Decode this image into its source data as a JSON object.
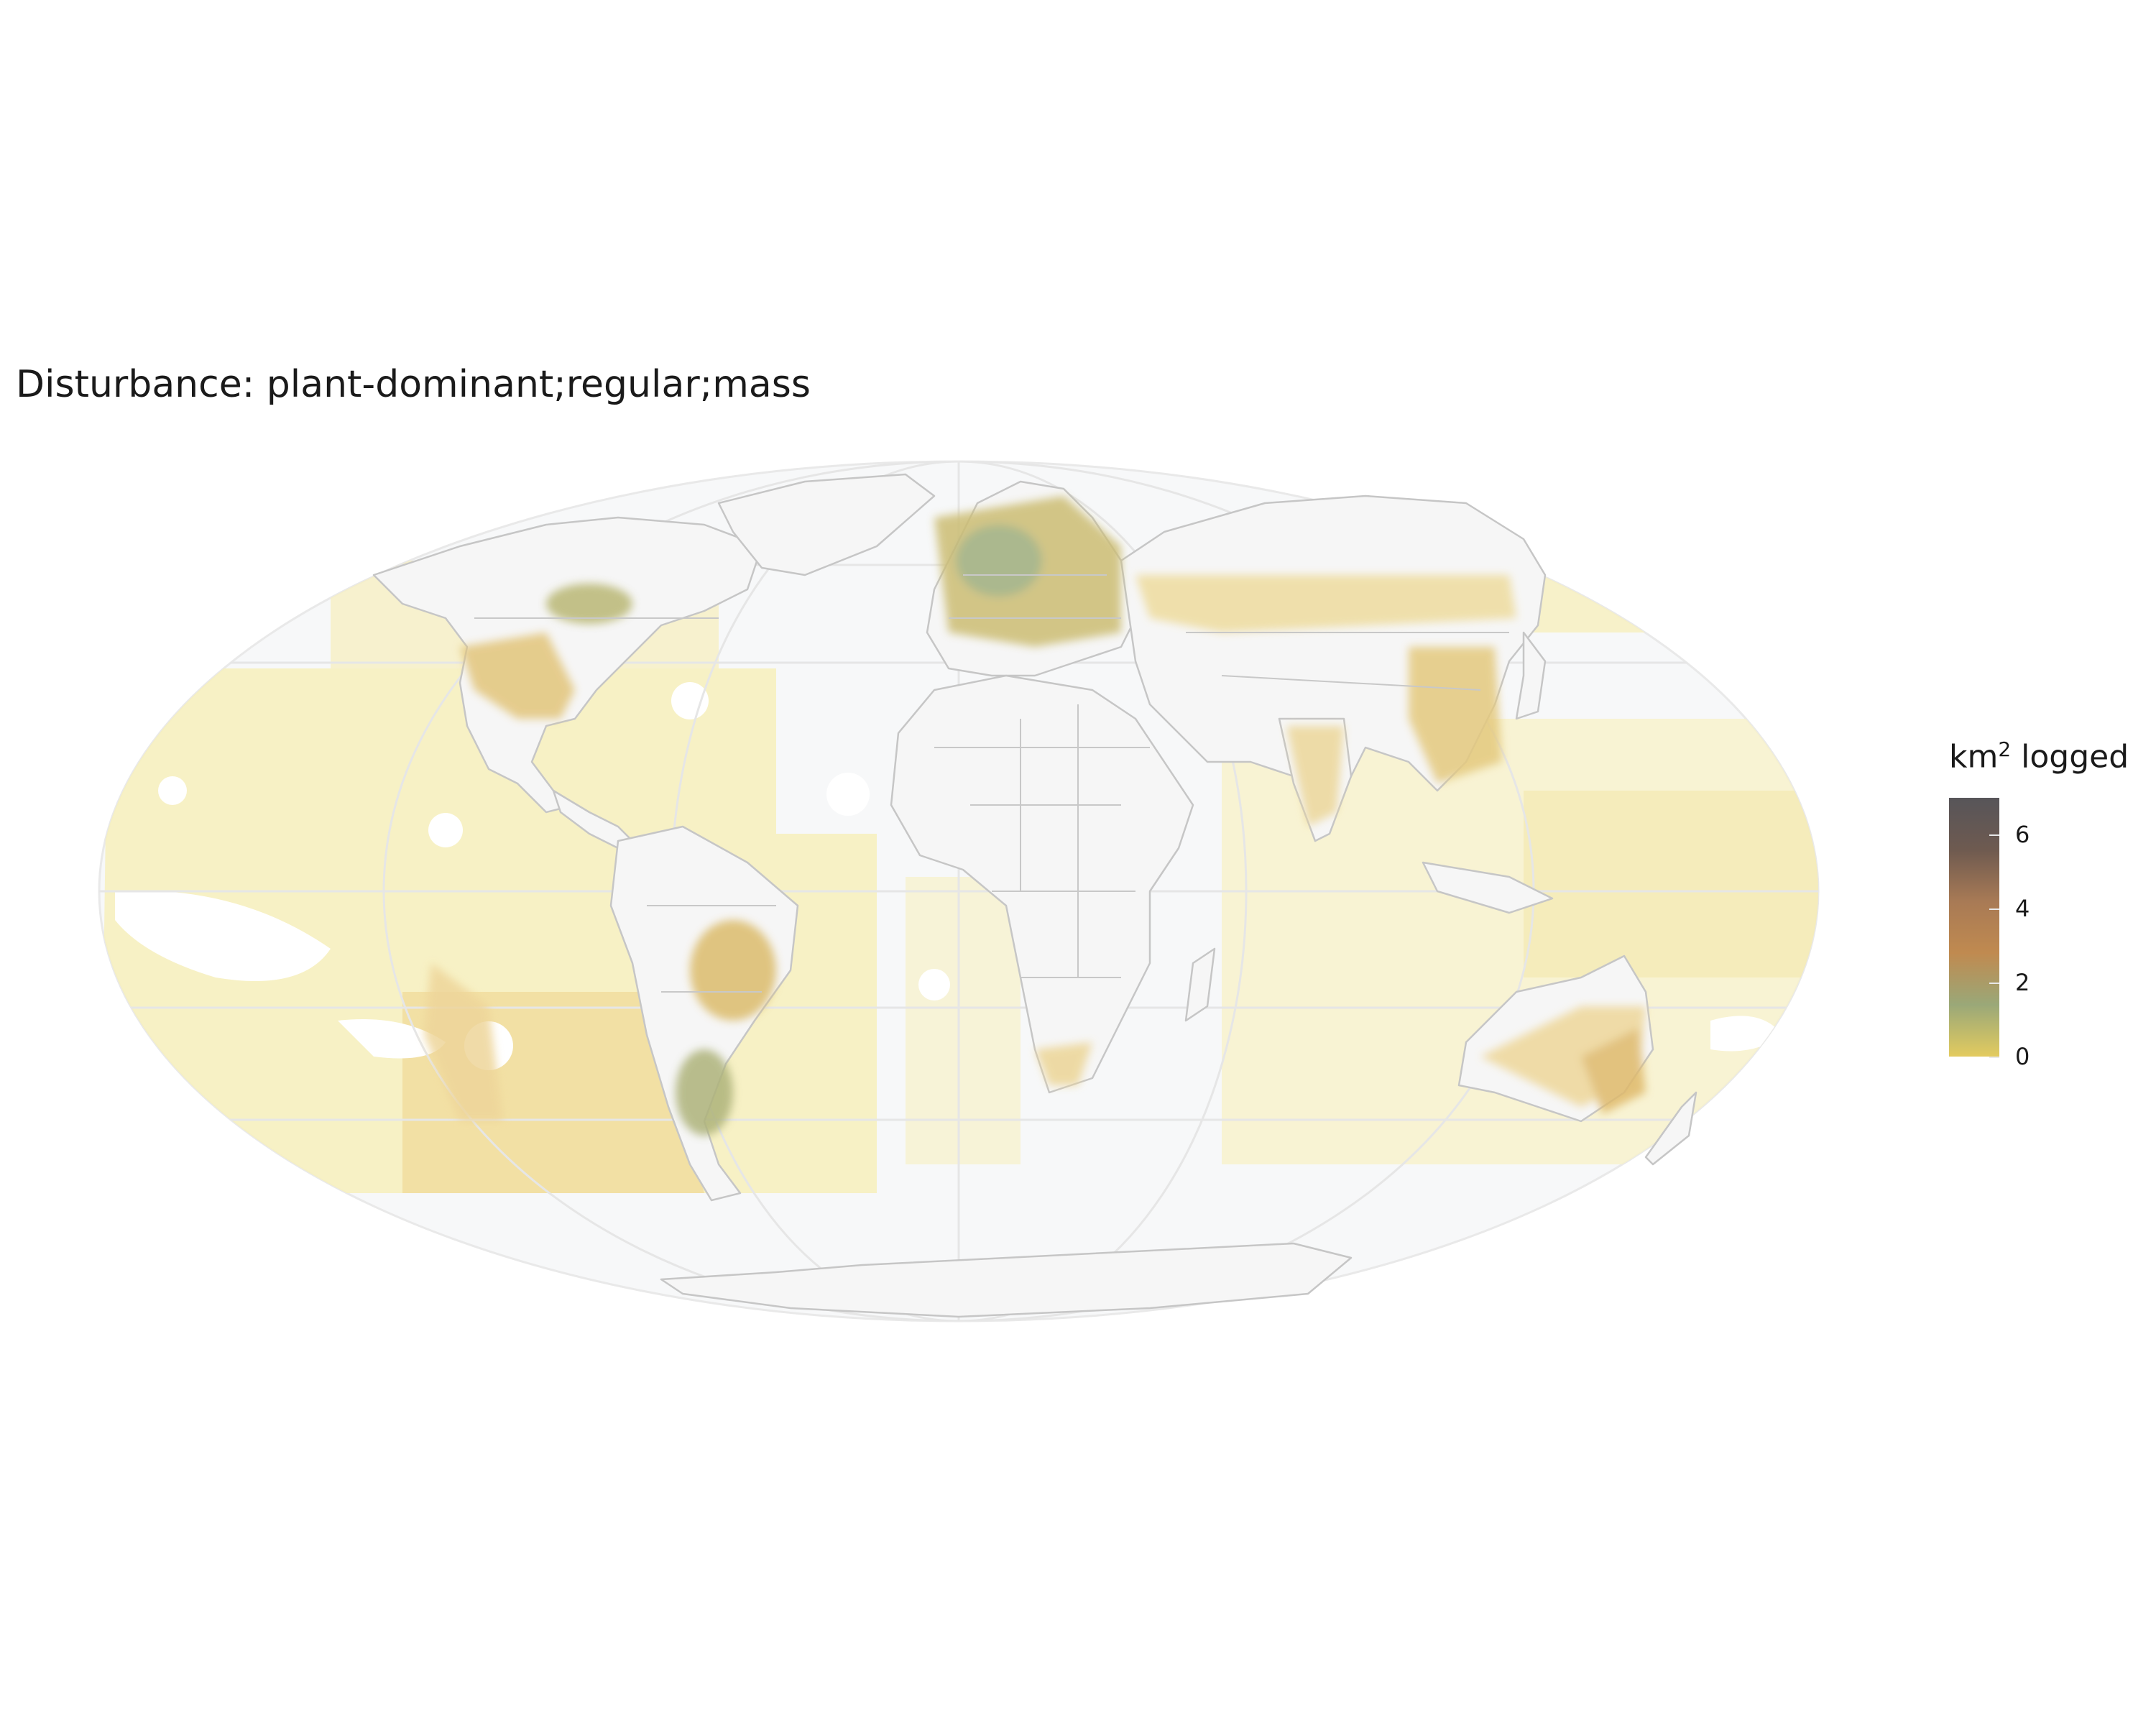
{
  "title": "Disturbance: plant-dominant;regular;mass",
  "legend": {
    "title_prefix": "km",
    "title_superscript": "2",
    "title_suffix": " logged",
    "ticks": [
      "0",
      "2",
      "4",
      "6"
    ],
    "range": [
      0,
      7
    ],
    "colors": [
      "#e3cb5f",
      "#9aa878",
      "#c08a50",
      "#a87a55",
      "#6e5a50",
      "#575559"
    ]
  },
  "map": {
    "projection": "Mollweide",
    "graticule": true,
    "ocean_color": "#f7f8f9",
    "border_color": "#c8c8c8",
    "low_value_color": "#f5ecb0",
    "high_value_color": "#d9b86a"
  }
}
